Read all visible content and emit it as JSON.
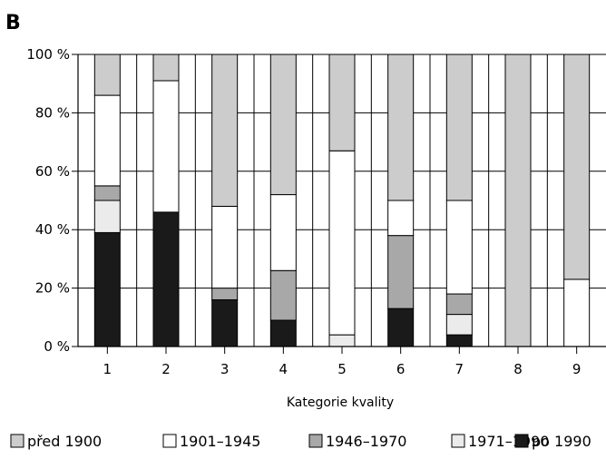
{
  "panel_label": "B",
  "chart_data": {
    "type": "bar",
    "stacked": true,
    "percent": true,
    "title": "",
    "xlabel": "Kategorie kvality",
    "ylabel": "",
    "ylim": [
      0,
      100
    ],
    "y_ticks": [
      0,
      20,
      40,
      60,
      80,
      100
    ],
    "y_tick_labels": [
      "0 %",
      "20 %",
      "40 %",
      "60 %",
      "80 %",
      "100 %"
    ],
    "categories": [
      "1",
      "2",
      "3",
      "4",
      "5",
      "6",
      "7",
      "8",
      "9"
    ],
    "grid": true,
    "legend_position": "bottom",
    "series": [
      {
        "name": "po 1990",
        "color": "#1a1a1a",
        "values": [
          39,
          46,
          16,
          9,
          0,
          13,
          4,
          0,
          0
        ]
      },
      {
        "name": "1971–1990",
        "color": "#ebebeb",
        "values": [
          11,
          0,
          0,
          0,
          4,
          0,
          7,
          0,
          0
        ]
      },
      {
        "name": "1946–1970",
        "color": "#a8a8a8",
        "values": [
          5,
          0,
          4,
          17,
          0,
          25,
          7,
          0,
          0
        ]
      },
      {
        "name": "1901–1945",
        "color": "#ffffff",
        "values": [
          31,
          45,
          28,
          26,
          63,
          12,
          32,
          0,
          23
        ]
      },
      {
        "name": "před 1900",
        "color": "#cccccc",
        "values": [
          14,
          9,
          52,
          48,
          33,
          50,
          50,
          100,
          77
        ]
      }
    ],
    "legend_order": [
      "před 1900",
      "1901–1945",
      "1946–1970",
      "1971–1990",
      "po 1990"
    ]
  }
}
